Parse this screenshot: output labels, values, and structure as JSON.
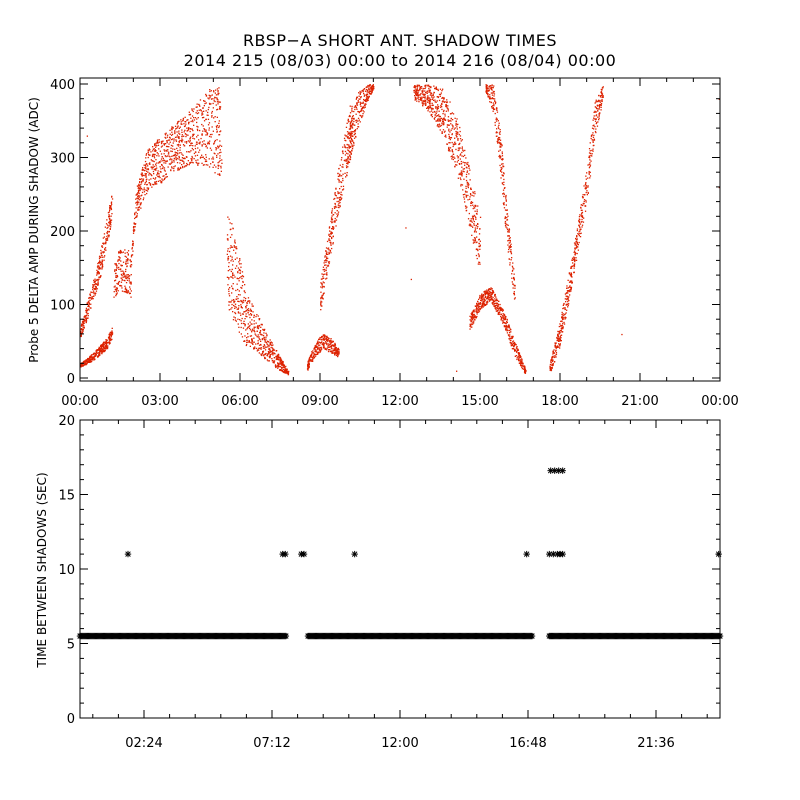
{
  "title_line1": "RBSP−A SHORT ANT. SHADOW TIMES",
  "title_line2": "2014 215 (08/03) 00:00 to 2014 216 (08/04) 00:00",
  "colors": {
    "top_points": "#dd2200",
    "bottom_points": "#000000",
    "axis": "#000000",
    "background": "#ffffff"
  },
  "chart_data": [
    {
      "type": "scatter",
      "ylabel": "Probe 5 DELTA AMP DURING SHADOW (ADC)",
      "xlabel": "",
      "xlim_hours": [
        0,
        24
      ],
      "ylim": [
        0,
        400
      ],
      "yticks": [
        0,
        100,
        200,
        300,
        400
      ],
      "xtick_labels": [
        "00:00",
        "03:00",
        "06:00",
        "09:00",
        "12:00",
        "15:00",
        "18:00",
        "21:00",
        "00:00"
      ],
      "series": [
        {
          "color": "#dd2200",
          "segments": [
            {
              "x": [
                0.0,
                0.5,
                1.0,
                1.2
              ],
              "y_low": [
                15,
                25,
                40,
                55
              ],
              "y_high": [
                20,
                35,
                55,
                70
              ]
            },
            {
              "x": [
                0.0,
                0.3,
                0.7,
                1.1,
                1.2
              ],
              "y_low": [
                55,
                85,
                130,
                200,
                210
              ],
              "y_high": [
                70,
                110,
                165,
                240,
                255
              ]
            },
            {
              "x": [
                1.25,
                1.5,
                1.8,
                1.9
              ],
              "y_low": [
                110,
                120,
                115,
                110
              ],
              "y_high": [
                155,
                180,
                175,
                165
              ]
            },
            {
              "x": [
                1.9,
                2.1,
                2.5,
                3.0,
                3.5,
                4.0,
                4.5,
                5.0,
                5.3
              ],
              "y_low": [
                150,
                220,
                250,
                265,
                280,
                290,
                290,
                280,
                275
              ],
              "y_high": [
                170,
                260,
                310,
                330,
                345,
                360,
                380,
                400,
                395
              ]
            },
            {
              "x": [
                5.5,
                5.9,
                6.2,
                6.6,
                7.0,
                7.4,
                7.8
              ],
              "y_low": [
                100,
                65,
                45,
                35,
                25,
                12,
                5
              ],
              "y_high": [
                240,
                180,
                120,
                90,
                60,
                35,
                10
              ]
            },
            {
              "x": [
                8.5,
                8.8,
                9.1,
                9.4,
                9.6,
                9.7
              ],
              "y_low": [
                10,
                30,
                40,
                35,
                30,
                30
              ],
              "y_high": [
                20,
                50,
                60,
                55,
                45,
                40
              ]
            },
            {
              "x": [
                9.0,
                9.3,
                9.6,
                9.9,
                10.2
              ],
              "y_low": [
                90,
                150,
                210,
                260,
                310
              ],
              "y_high": [
                130,
                200,
                270,
                330,
                390
              ]
            },
            {
              "x": [
                10.0,
                10.4,
                10.8,
                11.0
              ],
              "y_low": [
                280,
                340,
                380,
                395
              ],
              "y_high": [
                330,
                390,
                400,
                400
              ]
            },
            {
              "x": [
                12.5,
                13.0,
                13.6,
                14.1,
                14.5,
                15.0
              ],
              "y_low": [
                380,
                365,
                330,
                280,
                220,
                140
              ],
              "y_high": [
                400,
                400,
                395,
                360,
                300,
                220
              ]
            },
            {
              "x": [
                14.6,
                15.0,
                15.4,
                15.9,
                16.3,
                16.7
              ],
              "y_low": [
                65,
                95,
                105,
                70,
                30,
                5
              ],
              "y_high": [
                85,
                115,
                125,
                90,
                50,
                12
              ]
            },
            {
              "x": [
                15.2,
                15.5,
                15.8,
                16.0,
                16.3
              ],
              "y_low": [
                390,
                360,
                260,
                180,
                100
              ],
              "y_high": [
                400,
                400,
                320,
                230,
                130
              ]
            },
            {
              "x": [
                17.6,
                18.0,
                18.5,
                19.0,
                19.3,
                19.6
              ],
              "y_low": [
                5,
                45,
                140,
                240,
                330,
                380
              ],
              "y_high": [
                20,
                80,
                180,
                290,
                380,
                400
              ]
            }
          ],
          "isolated_points": [
            [
              0.25,
              330
            ],
            [
              12.2,
              205
            ],
            [
              12.4,
              135
            ],
            [
              14.1,
              10
            ],
            [
              20.3,
              60
            ],
            [
              23.95,
              260
            ],
            [
              23.95,
              380
            ]
          ]
        }
      ]
    },
    {
      "type": "scatter",
      "ylabel": "TIME BETWEEN SHADOWS (SEC)",
      "xlabel": "",
      "xlim_hours": [
        0,
        24
      ],
      "ylim": [
        0,
        20
      ],
      "yticks": [
        0,
        5,
        10,
        15,
        20
      ],
      "xtick_labels": [
        "02:24",
        "07:12",
        "12:00",
        "16:48",
        "21:36"
      ],
      "series": [
        {
          "color": "#000000",
          "marker": "*",
          "baseline": {
            "value": 5.5,
            "ranges_hours": [
              [
                0.0,
                7.75
              ],
              [
                8.55,
                16.95
              ],
              [
                17.6,
                24.0
              ]
            ]
          },
          "points": [
            [
              1.8,
              11
            ],
            [
              7.6,
              11
            ],
            [
              7.7,
              11
            ],
            [
              8.3,
              11
            ],
            [
              8.4,
              11
            ],
            [
              10.3,
              11
            ],
            [
              16.75,
              11
            ],
            [
              17.6,
              11
            ],
            [
              17.75,
              11
            ],
            [
              17.9,
              11
            ],
            [
              18.0,
              11
            ],
            [
              18.1,
              11
            ],
            [
              17.65,
              16.6
            ],
            [
              17.8,
              16.6
            ],
            [
              17.95,
              16.6
            ],
            [
              18.1,
              16.6
            ],
            [
              23.95,
              11
            ]
          ]
        }
      ]
    }
  ]
}
